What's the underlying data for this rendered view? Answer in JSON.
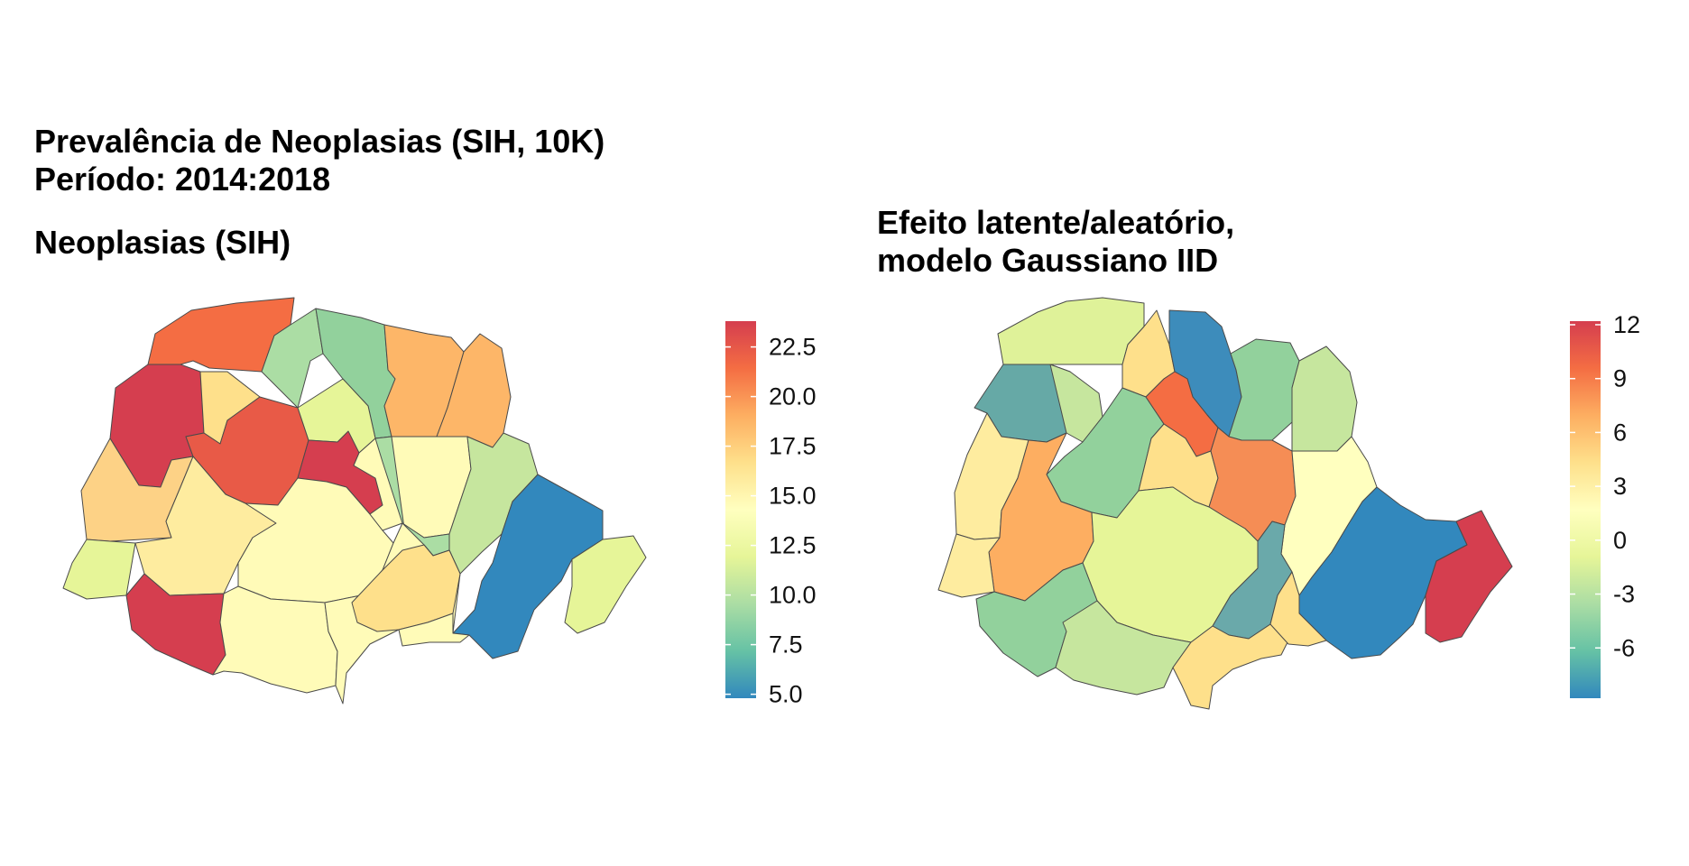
{
  "title": {
    "line1": "Prevalência de Neoplasias (SIH, 10K)",
    "line2": "Período: 2014:2018"
  },
  "left_map": {
    "subtitle": "Neoplasias (SIH)",
    "legend": {
      "range": [
        4.8,
        23.8
      ],
      "ticks": [
        "5.0",
        "7.5",
        "10.0",
        "12.5",
        "15.0",
        "17.5",
        "20.0",
        "22.5"
      ],
      "tick_values": [
        5.0,
        7.5,
        10.0,
        12.5,
        15.0,
        17.5,
        20.0,
        22.5
      ]
    }
  },
  "right_map": {
    "title_line1": "Efeito latente/aleatório,",
    "title_line2": "modelo Gaussiano IID",
    "legend": {
      "range": [
        -8.8,
        12.2
      ],
      "ticks": [
        "-6",
        "-3",
        "0",
        "3",
        "6",
        "9",
        "12"
      ],
      "tick_values": [
        -6,
        -3,
        0,
        3,
        6,
        9,
        12
      ]
    }
  },
  "color_scale": [
    "#3288bd",
    "#66c2a5",
    "#abdda4",
    "#e6f598",
    "#ffffbf",
    "#fee08b",
    "#fdae61",
    "#f46d43",
    "#d53e4f"
  ]
}
